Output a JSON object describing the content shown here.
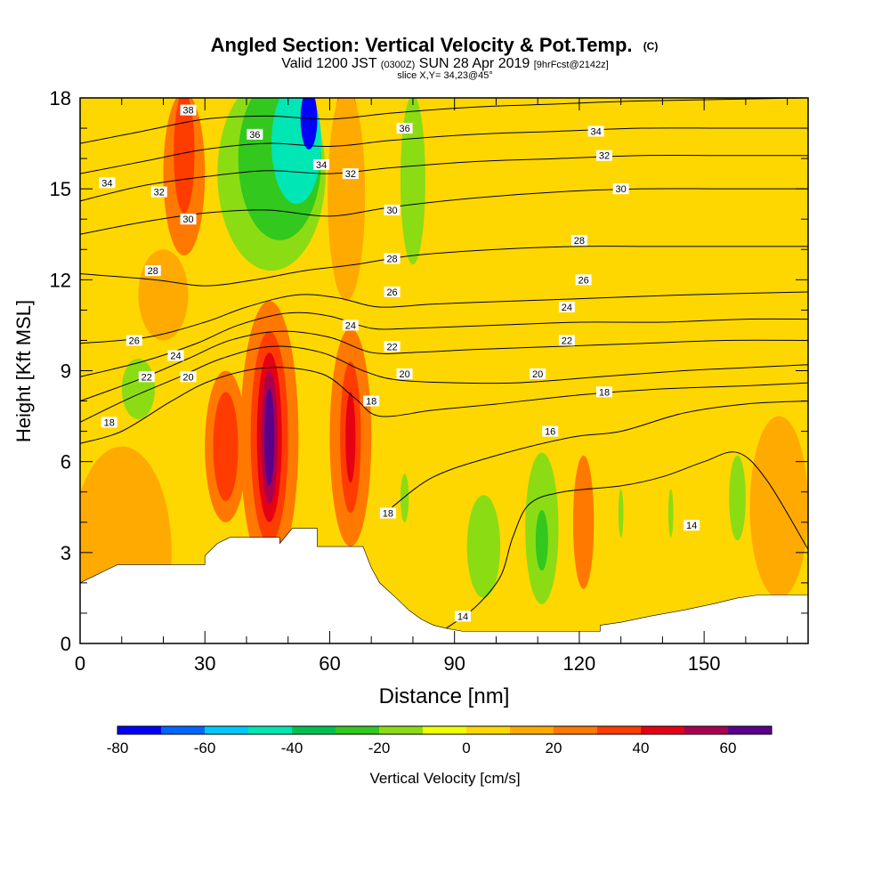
{
  "title": {
    "main": "Angled Section: Vertical Velocity & Pot.Temp.",
    "mark": "(C)",
    "valid_a": "Valid 1200 JST",
    "valid_b": "(0300Z)",
    "valid_c": "SUN 28 Apr 2019",
    "valid_d": "[9hrFcst@2142z]",
    "slice": "slice X,Y= 34,23@45°"
  },
  "chart_data": {
    "type": "heatmap",
    "xlabel": "Distance [nm]",
    "ylabel": "Height [Kft MSL]",
    "xlim": [
      0,
      175
    ],
    "ylim": [
      0,
      18
    ],
    "x_ticks": [
      0,
      30,
      60,
      90,
      120,
      150
    ],
    "y_ticks": [
      0,
      3,
      6,
      9,
      12,
      15,
      18
    ],
    "colorbar": {
      "label": "Vertical Velocity [cm/s]",
      "ticks": [
        -80,
        -60,
        -40,
        -20,
        0,
        20,
        40,
        60
      ],
      "bins": [
        {
          "from": -80,
          "to": -70,
          "color": "#0000ff"
        },
        {
          "from": -70,
          "to": -60,
          "color": "#0066ff"
        },
        {
          "from": -60,
          "to": -50,
          "color": "#00c8ff"
        },
        {
          "from": -50,
          "to": -40,
          "color": "#00e6b4"
        },
        {
          "from": -40,
          "to": -30,
          "color": "#00c050"
        },
        {
          "from": -30,
          "to": -20,
          "color": "#32c81e"
        },
        {
          "from": -20,
          "to": -10,
          "color": "#8cdc14"
        },
        {
          "from": -10,
          "to": 0,
          "color": "#f0ff00"
        },
        {
          "from": 0,
          "to": 10,
          "color": "#ffd700"
        },
        {
          "from": 10,
          "to": 20,
          "color": "#ffaa00"
        },
        {
          "from": 20,
          "to": 30,
          "color": "#ff7800"
        },
        {
          "from": 30,
          "to": 40,
          "color": "#ff3c00"
        },
        {
          "from": 40,
          "to": 50,
          "color": "#e60014"
        },
        {
          "from": 50,
          "to": 60,
          "color": "#aa0050"
        },
        {
          "from": 60,
          "to": 70,
          "color": "#5a008c"
        }
      ]
    },
    "terrain": [
      [
        0,
        2.0
      ],
      [
        3,
        2.2
      ],
      [
        6,
        2.4
      ],
      [
        9,
        2.6
      ],
      [
        30,
        2.6
      ],
      [
        30,
        2.9
      ],
      [
        33,
        3.3
      ],
      [
        36,
        3.5
      ],
      [
        48,
        3.5
      ],
      [
        48,
        3.3
      ],
      [
        51,
        3.8
      ],
      [
        57,
        3.8
      ],
      [
        57,
        3.2
      ],
      [
        68,
        3.2
      ],
      [
        70,
        2.5
      ],
      [
        72,
        2.0
      ],
      [
        76,
        1.5
      ],
      [
        79,
        1.1
      ],
      [
        82,
        0.8
      ],
      [
        85,
        0.6
      ],
      [
        88,
        0.5
      ],
      [
        92,
        0.4
      ],
      [
        125,
        0.4
      ],
      [
        125,
        0.6
      ],
      [
        130,
        0.7
      ],
      [
        137,
        0.9
      ],
      [
        145,
        1.1
      ],
      [
        152,
        1.3
      ],
      [
        158,
        1.5
      ],
      [
        163,
        1.6
      ],
      [
        175,
        1.6
      ]
    ],
    "theta_contours": [
      {
        "value": 14,
        "points": [
          [
            88,
            0.5
          ],
          [
            95,
            1.2
          ],
          [
            101,
            2.2
          ],
          [
            104,
            3.5
          ],
          [
            108,
            4.6
          ],
          [
            116,
            5.0
          ],
          [
            130,
            5.2
          ],
          [
            140,
            5.5
          ],
          [
            150,
            6.0
          ],
          [
            158,
            6.3
          ],
          [
            165,
            5.4
          ],
          [
            175,
            3.1
          ]
        ]
      },
      {
        "value": 16,
        "points": [
          [
            75,
            4.5
          ],
          [
            85,
            5.5
          ],
          [
            100,
            6.2
          ],
          [
            118,
            6.8
          ],
          [
            130,
            7.0
          ],
          [
            145,
            7.6
          ],
          [
            160,
            7.9
          ],
          [
            175,
            8.0
          ]
        ]
      },
      {
        "value": 18,
        "points": [
          [
            0,
            6.6
          ],
          [
            10,
            7.0
          ],
          [
            22,
            8.0
          ],
          [
            32,
            8.7
          ],
          [
            45,
            9.1
          ],
          [
            58,
            8.9
          ],
          [
            66,
            8.1
          ],
          [
            72,
            7.5
          ],
          [
            85,
            7.7
          ],
          [
            100,
            7.9
          ],
          [
            120,
            8.2
          ],
          [
            140,
            8.4
          ],
          [
            160,
            8.5
          ],
          [
            175,
            8.6
          ]
        ]
      },
      {
        "value": 20,
        "points": [
          [
            0,
            7.3
          ],
          [
            12,
            8.1
          ],
          [
            24,
            8.8
          ],
          [
            34,
            9.4
          ],
          [
            46,
            9.8
          ],
          [
            58,
            9.6
          ],
          [
            68,
            9.0
          ],
          [
            76,
            8.7
          ],
          [
            90,
            8.6
          ],
          [
            105,
            8.6
          ],
          [
            125,
            8.8
          ],
          [
            145,
            9.0
          ],
          [
            160,
            9.1
          ],
          [
            175,
            9.2
          ]
        ]
      },
      {
        "value": 22,
        "points": [
          [
            0,
            8.0
          ],
          [
            14,
            8.7
          ],
          [
            26,
            9.4
          ],
          [
            36,
            10.0
          ],
          [
            48,
            10.3
          ],
          [
            60,
            10.1
          ],
          [
            70,
            9.6
          ],
          [
            80,
            9.6
          ],
          [
            95,
            9.7
          ],
          [
            115,
            9.8
          ],
          [
            135,
            9.9
          ],
          [
            155,
            10.0
          ],
          [
            175,
            10.0
          ]
        ]
      },
      {
        "value": 24,
        "points": [
          [
            0,
            8.8
          ],
          [
            15,
            9.3
          ],
          [
            28,
            9.9
          ],
          [
            38,
            10.5
          ],
          [
            50,
            10.9
          ],
          [
            60,
            10.8
          ],
          [
            70,
            10.4
          ],
          [
            80,
            10.4
          ],
          [
            100,
            10.5
          ],
          [
            120,
            10.6
          ],
          [
            140,
            10.6
          ],
          [
            160,
            10.7
          ],
          [
            175,
            10.7
          ]
        ]
      },
      {
        "value": 26,
        "points": [
          [
            0,
            9.9
          ],
          [
            16,
            10.1
          ],
          [
            30,
            10.6
          ],
          [
            40,
            11.1
          ],
          [
            52,
            11.5
          ],
          [
            62,
            11.4
          ],
          [
            72,
            11.1
          ],
          [
            85,
            11.2
          ],
          [
            105,
            11.3
          ],
          [
            125,
            11.4
          ],
          [
            145,
            11.5
          ],
          [
            175,
            11.6
          ]
        ]
      },
      {
        "value": 28,
        "points": [
          [
            0,
            12.2
          ],
          [
            18,
            12.0
          ],
          [
            30,
            11.8
          ],
          [
            42,
            12.0
          ],
          [
            54,
            12.3
          ],
          [
            66,
            12.5
          ],
          [
            80,
            12.8
          ],
          [
            100,
            13.0
          ],
          [
            120,
            13.1
          ],
          [
            140,
            13.1
          ],
          [
            175,
            13.1
          ]
        ]
      },
      {
        "value": 30,
        "points": [
          [
            0,
            13.5
          ],
          [
            15,
            13.9
          ],
          [
            30,
            14.2
          ],
          [
            45,
            14.3
          ],
          [
            60,
            14.1
          ],
          [
            75,
            14.4
          ],
          [
            95,
            14.7
          ],
          [
            115,
            14.9
          ],
          [
            135,
            15.0
          ],
          [
            155,
            15.0
          ],
          [
            175,
            15.0
          ]
        ]
      },
      {
        "value": 32,
        "points": [
          [
            0,
            14.6
          ],
          [
            15,
            15.1
          ],
          [
            30,
            15.4
          ],
          [
            45,
            15.6
          ],
          [
            60,
            15.5
          ],
          [
            75,
            15.7
          ],
          [
            95,
            15.9
          ],
          [
            115,
            16.0
          ],
          [
            135,
            16.1
          ],
          [
            155,
            16.1
          ],
          [
            175,
            16.1
          ]
        ]
      },
      {
        "value": 34,
        "points": [
          [
            0,
            15.5
          ],
          [
            15,
            15.9
          ],
          [
            30,
            16.3
          ],
          [
            45,
            16.5
          ],
          [
            60,
            16.4
          ],
          [
            75,
            16.6
          ],
          [
            95,
            16.8
          ],
          [
            115,
            16.9
          ],
          [
            135,
            17.0
          ],
          [
            155,
            17.0
          ],
          [
            175,
            17.0
          ]
        ]
      },
      {
        "value": 36,
        "points": [
          [
            0,
            16.5
          ],
          [
            15,
            16.9
          ],
          [
            30,
            17.3
          ],
          [
            45,
            17.4
          ],
          [
            60,
            17.3
          ],
          [
            75,
            17.5
          ],
          [
            95,
            17.7
          ],
          [
            115,
            17.8
          ],
          [
            135,
            17.9
          ],
          [
            175,
            18.0
          ]
        ]
      }
    ],
    "contour_labels": [
      {
        "text": "34",
        "x": 6.5,
        "y": 15.2
      },
      {
        "text": "32",
        "x": 19,
        "y": 14.9
      },
      {
        "text": "30",
        "x": 26,
        "y": 14.0
      },
      {
        "text": "28",
        "x": 17.5,
        "y": 12.3
      },
      {
        "text": "26",
        "x": 13,
        "y": 10.0
      },
      {
        "text": "24",
        "x": 23,
        "y": 9.5
      },
      {
        "text": "22",
        "x": 16,
        "y": 8.8
      },
      {
        "text": "20",
        "x": 26,
        "y": 8.8
      },
      {
        "text": "18",
        "x": 7,
        "y": 7.3
      },
      {
        "text": "38",
        "x": 26,
        "y": 17.6
      },
      {
        "text": "36",
        "x": 42,
        "y": 16.8
      },
      {
        "text": "34",
        "x": 58,
        "y": 15.8
      },
      {
        "text": "32",
        "x": 65,
        "y": 15.5
      },
      {
        "text": "30",
        "x": 75,
        "y": 14.3
      },
      {
        "text": "28",
        "x": 75,
        "y": 12.7
      },
      {
        "text": "26",
        "x": 75,
        "y": 11.6
      },
      {
        "text": "24",
        "x": 65,
        "y": 10.5
      },
      {
        "text": "22",
        "x": 75,
        "y": 9.8
      },
      {
        "text": "20",
        "x": 78,
        "y": 8.9
      },
      {
        "text": "18",
        "x": 70,
        "y": 8.0
      },
      {
        "text": "36",
        "x": 78,
        "y": 17.0
      },
      {
        "text": "34",
        "x": 124,
        "y": 16.9
      },
      {
        "text": "32",
        "x": 126,
        "y": 16.1
      },
      {
        "text": "30",
        "x": 130,
        "y": 15.0
      },
      {
        "text": "28",
        "x": 120,
        "y": 13.3
      },
      {
        "text": "26",
        "x": 121,
        "y": 12.0
      },
      {
        "text": "24",
        "x": 117,
        "y": 11.1
      },
      {
        "text": "22",
        "x": 117,
        "y": 10.0
      },
      {
        "text": "20",
        "x": 110,
        "y": 8.9
      },
      {
        "text": "18",
        "x": 126,
        "y": 8.3
      },
      {
        "text": "16",
        "x": 113,
        "y": 7.0
      },
      {
        "text": "18",
        "x": 74,
        "y": 4.3
      },
      {
        "text": "14",
        "x": 92,
        "y": 0.9
      },
      {
        "text": "14",
        "x": 147,
        "y": 3.9
      }
    ],
    "velocity_features": [
      {
        "cx": 45.5,
        "cy": 6.8,
        "rx": 7,
        "ry": 4.5,
        "v": 22
      },
      {
        "cx": 45.5,
        "cy": 6.8,
        "rx": 4.5,
        "ry": 3.5,
        "v": 35
      },
      {
        "cx": 45.5,
        "cy": 6.8,
        "rx": 3.0,
        "ry": 2.8,
        "v": 45
      },
      {
        "cx": 45.5,
        "cy": 6.8,
        "rx": 2.0,
        "ry": 2.2,
        "v": 55
      },
      {
        "cx": 45.5,
        "cy": 6.8,
        "rx": 1.2,
        "ry": 1.6,
        "v": 65
      },
      {
        "cx": 35,
        "cy": 6.5,
        "rx": 5,
        "ry": 2.5,
        "v": 25
      },
      {
        "cx": 35,
        "cy": 6.5,
        "rx": 3,
        "ry": 1.8,
        "v": 35
      },
      {
        "cx": 65,
        "cy": 6.8,
        "rx": 5,
        "ry": 3.6,
        "v": 25
      },
      {
        "cx": 65,
        "cy": 6.8,
        "rx": 2.5,
        "ry": 2.5,
        "v": 35
      },
      {
        "cx": 65,
        "cy": 6.8,
        "rx": 1.2,
        "ry": 1.5,
        "v": 45
      },
      {
        "cx": 25,
        "cy": 15.5,
        "rx": 5,
        "ry": 2.7,
        "v": 25
      },
      {
        "cx": 25,
        "cy": 16.2,
        "rx": 2.5,
        "ry": 2.0,
        "v": 35
      },
      {
        "cx": 64,
        "cy": 16.8,
        "rx": 3,
        "ry": 1.6,
        "v": 35
      },
      {
        "cx": 64,
        "cy": 14.8,
        "rx": 4.5,
        "ry": 3.5,
        "v": 15
      },
      {
        "cx": 46,
        "cy": 15.5,
        "rx": 13,
        "ry": 3.2,
        "v": -15
      },
      {
        "cx": 48,
        "cy": 16.0,
        "rx": 10,
        "ry": 2.7,
        "v": -25
      },
      {
        "cx": 52,
        "cy": 16.5,
        "rx": 6,
        "ry": 2.0,
        "v": -45
      },
      {
        "cx": 55,
        "cy": 17.3,
        "rx": 2,
        "ry": 1.0,
        "v": -75
      },
      {
        "cx": 80,
        "cy": 15.3,
        "rx": 3,
        "ry": 2.8,
        "v": -15
      },
      {
        "cx": 14,
        "cy": 8.4,
        "rx": 4,
        "ry": 1.0,
        "v": -15
      },
      {
        "cx": 97,
        "cy": 3.2,
        "rx": 4,
        "ry": 1.7,
        "v": -15
      },
      {
        "cx": 111,
        "cy": 3.8,
        "rx": 4,
        "ry": 2.5,
        "v": -15
      },
      {
        "cx": 111,
        "cy": 3.4,
        "rx": 1.5,
        "ry": 1.0,
        "v": -25
      },
      {
        "cx": 121,
        "cy": 4.0,
        "rx": 2.5,
        "ry": 2.2,
        "v": 25
      },
      {
        "cx": 158,
        "cy": 4.8,
        "rx": 2,
        "ry": 1.4,
        "v": -15
      },
      {
        "cx": 78,
        "cy": 4.8,
        "rx": 1.0,
        "ry": 0.8,
        "v": -15
      },
      {
        "cx": 142,
        "cy": 4.3,
        "rx": 0.6,
        "ry": 0.8,
        "v": -15
      },
      {
        "cx": 130,
        "cy": 4.3,
        "rx": 0.6,
        "ry": 0.8,
        "v": -15
      },
      {
        "cx": 10,
        "cy": 3.0,
        "rx": 12,
        "ry": 3.5,
        "v": 12
      },
      {
        "cx": 168,
        "cy": 4.5,
        "rx": 7,
        "ry": 3.0,
        "v": 12
      },
      {
        "cx": 20,
        "cy": 11.5,
        "rx": 6,
        "ry": 1.5,
        "v": 12
      },
      {
        "cx": 145,
        "cy": 12.0,
        "rx": 8,
        "ry": 4.0,
        "v": 5
      }
    ]
  }
}
